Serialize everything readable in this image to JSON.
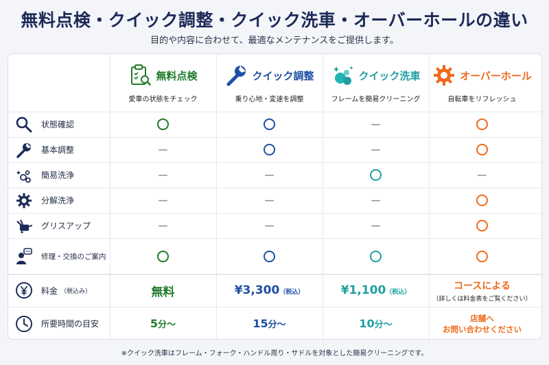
{
  "title": "無料点検・クイック調整・クイック洗車・オーバーホールの違い",
  "subtitle": "目的や内容に合わせて、最適なメンテナンスをご提供します。",
  "colors": {
    "green": "#1f7a2a",
    "blue": "#1e4fa3",
    "teal": "#1f9fa0",
    "orange": "#ef6a1a"
  },
  "services": [
    {
      "name": "無料点検",
      "desc": "愛車の状態をチェック",
      "icon": "clipboard-search-icon",
      "color": "#1f7a2a"
    },
    {
      "name": "クイック調整",
      "desc": "乗り心地・変速を調整",
      "icon": "wrench-icon",
      "color": "#1e4fa3"
    },
    {
      "name": "クイック洗車",
      "desc": "フレームを簡易クリーニング",
      "icon": "bubbles-icon",
      "color": "#1f9fa0"
    },
    {
      "name": "オーバーホール",
      "desc": "自転車をリフレッシュ",
      "icon": "gear-icon",
      "color": "#ef6a1a"
    }
  ],
  "rows": [
    {
      "label": "状態確認",
      "icon": "search-icon",
      "marks": [
        "○",
        "○",
        "—",
        "○"
      ]
    },
    {
      "label": "基本調整",
      "icon": "wrench-icon",
      "marks": [
        "—",
        "○",
        "—",
        "○"
      ]
    },
    {
      "label": "簡易洗浄",
      "icon": "sparkle-bubbles-icon",
      "marks": [
        "—",
        "—",
        "○",
        "—"
      ]
    },
    {
      "label": "分解洗浄",
      "icon": "gear-icon",
      "marks": [
        "—",
        "—",
        "—",
        "○"
      ]
    },
    {
      "label": "グリスアップ",
      "icon": "grease-gun-icon",
      "marks": [
        "—",
        "—",
        "—",
        "○"
      ]
    },
    {
      "label": "修理・交換のご案内",
      "icon": "person-chat-icon",
      "marks": [
        "○",
        "○",
        "○",
        "○"
      ]
    }
  ],
  "price": {
    "label": "料金",
    "label_note": "（税込み）",
    "icon": "yen-icon",
    "values": [
      {
        "main": "無料",
        "note": "",
        "sub": ""
      },
      {
        "main": "¥3,300",
        "note": "（税込）",
        "sub": ""
      },
      {
        "main": "¥1,100",
        "note": "（税込）",
        "sub": ""
      },
      {
        "main": "コースによる",
        "note": "",
        "sub": "（詳しくは料金表をご覧ください）"
      }
    ]
  },
  "time": {
    "label": "所要時間の目安",
    "icon": "clock-icon",
    "values": [
      {
        "num": "5",
        "unit": "分〜",
        "line1": "",
        "line2": ""
      },
      {
        "num": "15",
        "unit": "分〜",
        "line1": "",
        "line2": ""
      },
      {
        "num": "10",
        "unit": "分〜",
        "line1": "",
        "line2": ""
      },
      {
        "num": "",
        "unit": "",
        "line1": "店舗へ",
        "line2": "お問い合わせください"
      }
    ]
  },
  "footnote": "※クイック洗車はフレーム・フォーク・ハンドル周り・サドルを対象とした簡易クリーニングです。"
}
